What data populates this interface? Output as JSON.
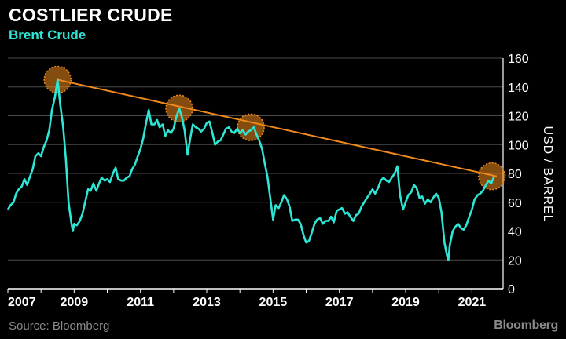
{
  "chart_data": {
    "type": "line",
    "title": "COSTLIER CRUDE",
    "subtitle": "Brent Crude",
    "ylabel": "USD / BARREL",
    "xlim": [
      2007,
      2021.75
    ],
    "ylim": [
      0,
      160
    ],
    "yticks": [
      0,
      20,
      40,
      60,
      80,
      100,
      120,
      140,
      160
    ],
    "xticks": [
      2007,
      2009,
      2011,
      2013,
      2015,
      2017,
      2019,
      2021
    ],
    "grid": true,
    "series": [
      {
        "color": "#2ee6d6",
        "points": [
          [
            2007.0,
            55
          ],
          [
            2007.08,
            58
          ],
          [
            2007.17,
            60
          ],
          [
            2007.25,
            66
          ],
          [
            2007.33,
            69
          ],
          [
            2007.42,
            71
          ],
          [
            2007.5,
            76
          ],
          [
            2007.58,
            72
          ],
          [
            2007.67,
            78
          ],
          [
            2007.75,
            83
          ],
          [
            2007.83,
            92
          ],
          [
            2007.92,
            94
          ],
          [
            2008.0,
            92
          ],
          [
            2008.08,
            98
          ],
          [
            2008.17,
            103
          ],
          [
            2008.25,
            110
          ],
          [
            2008.33,
            124
          ],
          [
            2008.42,
            133
          ],
          [
            2008.5,
            145
          ],
          [
            2008.58,
            128
          ],
          [
            2008.67,
            112
          ],
          [
            2008.75,
            90
          ],
          [
            2008.83,
            60
          ],
          [
            2008.92,
            45
          ],
          [
            2008.96,
            40
          ],
          [
            2009.0,
            45
          ],
          [
            2009.08,
            44
          ],
          [
            2009.17,
            47
          ],
          [
            2009.25,
            52
          ],
          [
            2009.33,
            60
          ],
          [
            2009.42,
            69
          ],
          [
            2009.5,
            68
          ],
          [
            2009.58,
            73
          ],
          [
            2009.67,
            68
          ],
          [
            2009.75,
            73
          ],
          [
            2009.83,
            77
          ],
          [
            2009.92,
            75
          ],
          [
            2010.0,
            76
          ],
          [
            2010.08,
            74
          ],
          [
            2010.17,
            80
          ],
          [
            2010.25,
            84
          ],
          [
            2010.33,
            76
          ],
          [
            2010.42,
            75
          ],
          [
            2010.5,
            75
          ],
          [
            2010.58,
            77
          ],
          [
            2010.67,
            78
          ],
          [
            2010.75,
            83
          ],
          [
            2010.83,
            86
          ],
          [
            2010.92,
            92
          ],
          [
            2011.0,
            97
          ],
          [
            2011.08,
            104
          ],
          [
            2011.17,
            115
          ],
          [
            2011.25,
            124
          ],
          [
            2011.33,
            114
          ],
          [
            2011.42,
            114
          ],
          [
            2011.5,
            117
          ],
          [
            2011.58,
            112
          ],
          [
            2011.67,
            114
          ],
          [
            2011.75,
            106
          ],
          [
            2011.83,
            110
          ],
          [
            2011.92,
            108
          ],
          [
            2012.0,
            111
          ],
          [
            2012.08,
            119
          ],
          [
            2012.17,
            125
          ],
          [
            2012.25,
            119
          ],
          [
            2012.33,
            110
          ],
          [
            2012.42,
            93
          ],
          [
            2012.5,
            104
          ],
          [
            2012.58,
            114
          ],
          [
            2012.67,
            112
          ],
          [
            2012.75,
            111
          ],
          [
            2012.83,
            109
          ],
          [
            2012.92,
            111
          ],
          [
            2013.0,
            115
          ],
          [
            2013.08,
            116
          ],
          [
            2013.17,
            108
          ],
          [
            2013.25,
            100
          ],
          [
            2013.33,
            102
          ],
          [
            2013.42,
            103
          ],
          [
            2013.5,
            107
          ],
          [
            2013.58,
            111
          ],
          [
            2013.67,
            112
          ],
          [
            2013.75,
            109
          ],
          [
            2013.83,
            108
          ],
          [
            2013.92,
            111
          ],
          [
            2014.0,
            108
          ],
          [
            2014.08,
            110
          ],
          [
            2014.17,
            107
          ],
          [
            2014.25,
            109
          ],
          [
            2014.33,
            110
          ],
          [
            2014.42,
            112
          ],
          [
            2014.5,
            107
          ],
          [
            2014.58,
            103
          ],
          [
            2014.67,
            97
          ],
          [
            2014.75,
            87
          ],
          [
            2014.83,
            78
          ],
          [
            2014.92,
            62
          ],
          [
            2015.0,
            48
          ],
          [
            2015.08,
            58
          ],
          [
            2015.17,
            56
          ],
          [
            2015.25,
            60
          ],
          [
            2015.33,
            65
          ],
          [
            2015.42,
            62
          ],
          [
            2015.5,
            57
          ],
          [
            2015.58,
            47
          ],
          [
            2015.67,
            48
          ],
          [
            2015.75,
            48
          ],
          [
            2015.83,
            45
          ],
          [
            2015.92,
            37
          ],
          [
            2016.0,
            32
          ],
          [
            2016.08,
            33
          ],
          [
            2016.17,
            39
          ],
          [
            2016.25,
            45
          ],
          [
            2016.33,
            48
          ],
          [
            2016.42,
            49
          ],
          [
            2016.5,
            45
          ],
          [
            2016.58,
            47
          ],
          [
            2016.67,
            47
          ],
          [
            2016.75,
            50
          ],
          [
            2016.83,
            46
          ],
          [
            2016.92,
            54
          ],
          [
            2017.0,
            55
          ],
          [
            2017.08,
            56
          ],
          [
            2017.17,
            52
          ],
          [
            2017.25,
            53
          ],
          [
            2017.33,
            50
          ],
          [
            2017.42,
            47
          ],
          [
            2017.5,
            51
          ],
          [
            2017.58,
            52
          ],
          [
            2017.67,
            57
          ],
          [
            2017.75,
            60
          ],
          [
            2017.83,
            63
          ],
          [
            2017.92,
            66
          ],
          [
            2018.0,
            69
          ],
          [
            2018.08,
            66
          ],
          [
            2018.17,
            70
          ],
          [
            2018.25,
            75
          ],
          [
            2018.33,
            77
          ],
          [
            2018.42,
            75
          ],
          [
            2018.5,
            74
          ],
          [
            2018.58,
            77
          ],
          [
            2018.67,
            80
          ],
          [
            2018.75,
            85
          ],
          [
            2018.83,
            65
          ],
          [
            2018.92,
            55
          ],
          [
            2019.0,
            60
          ],
          [
            2019.08,
            65
          ],
          [
            2019.17,
            67
          ],
          [
            2019.25,
            72
          ],
          [
            2019.33,
            70
          ],
          [
            2019.42,
            63
          ],
          [
            2019.5,
            64
          ],
          [
            2019.58,
            59
          ],
          [
            2019.67,
            62
          ],
          [
            2019.75,
            60
          ],
          [
            2019.83,
            63
          ],
          [
            2019.92,
            66
          ],
          [
            2020.0,
            63
          ],
          [
            2020.08,
            53
          ],
          [
            2020.17,
            32
          ],
          [
            2020.25,
            23
          ],
          [
            2020.29,
            20
          ],
          [
            2020.33,
            30
          ],
          [
            2020.42,
            40
          ],
          [
            2020.5,
            43
          ],
          [
            2020.58,
            45
          ],
          [
            2020.67,
            42
          ],
          [
            2020.75,
            41
          ],
          [
            2020.83,
            44
          ],
          [
            2020.92,
            50
          ],
          [
            2021.0,
            55
          ],
          [
            2021.08,
            62
          ],
          [
            2021.17,
            65
          ],
          [
            2021.25,
            66
          ],
          [
            2021.33,
            68
          ],
          [
            2021.42,
            72
          ],
          [
            2021.5,
            75
          ],
          [
            2021.58,
            73
          ],
          [
            2021.67,
            78
          ]
        ]
      }
    ],
    "trendline": {
      "color": "#f08a1c",
      "from": [
        2008.5,
        145
      ],
      "to": [
        2021.75,
        78
      ]
    },
    "highlights": [
      {
        "x": 2008.5,
        "y": 145
      },
      {
        "x": 2012.17,
        "y": 125
      },
      {
        "x": 2014.33,
        "y": 112
      },
      {
        "x": 2021.6,
        "y": 78
      }
    ]
  },
  "footer": {
    "source": "Source: Bloomberg",
    "brand": "Bloomberg"
  }
}
